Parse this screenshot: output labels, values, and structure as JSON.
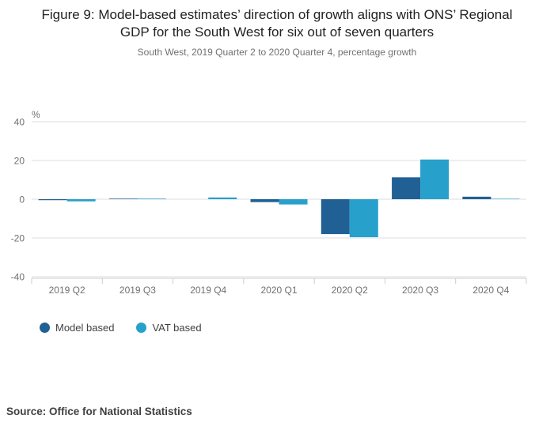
{
  "header": {
    "title": "Figure 9: Model-based estimates’ direction of growth aligns with ONS’ Regional GDP for the South West for six out of seven quarters",
    "subtitle": "South West, 2019 Quarter 2 to 2020 Quarter 4, percentage growth"
  },
  "chart_data": {
    "type": "bar",
    "title": "Figure 9: Model-based estimates’ direction of growth aligns with ONS’ Regional GDP for the South West for six out of seven quarters",
    "subtitle": "South West, 2019 Quarter 2 to 2020 Quarter 4, percentage growth",
    "unit_label": "%",
    "categories": [
      "2019 Q2",
      "2019 Q3",
      "2019 Q4",
      "2020 Q1",
      "2020 Q2",
      "2020 Q3",
      "2020 Q4"
    ],
    "series": [
      {
        "name": "Model based",
        "color": "#206095",
        "values": [
          -0.5,
          0.3,
          0.0,
          -1.5,
          -18.0,
          11.3,
          1.3
        ]
      },
      {
        "name": "VAT based",
        "color": "#27A0CC",
        "values": [
          -1.1,
          0.3,
          0.9,
          -2.7,
          -19.6,
          20.5,
          0.2
        ]
      }
    ],
    "ylim": [
      -40,
      40
    ],
    "yticks": [
      40,
      20,
      0,
      -20,
      -40
    ],
    "xlabel": "",
    "ylabel": "%",
    "grid": "horizontal",
    "legend_position": "bottom-left",
    "colors": {
      "gridline": "#dcdcdc",
      "axis": "#c9ced3",
      "tick_label": "#707071"
    }
  },
  "legend": {
    "items": [
      {
        "label": "Model based"
      },
      {
        "label": "VAT based"
      }
    ]
  },
  "source": {
    "label": "Source: Office for National Statistics"
  }
}
